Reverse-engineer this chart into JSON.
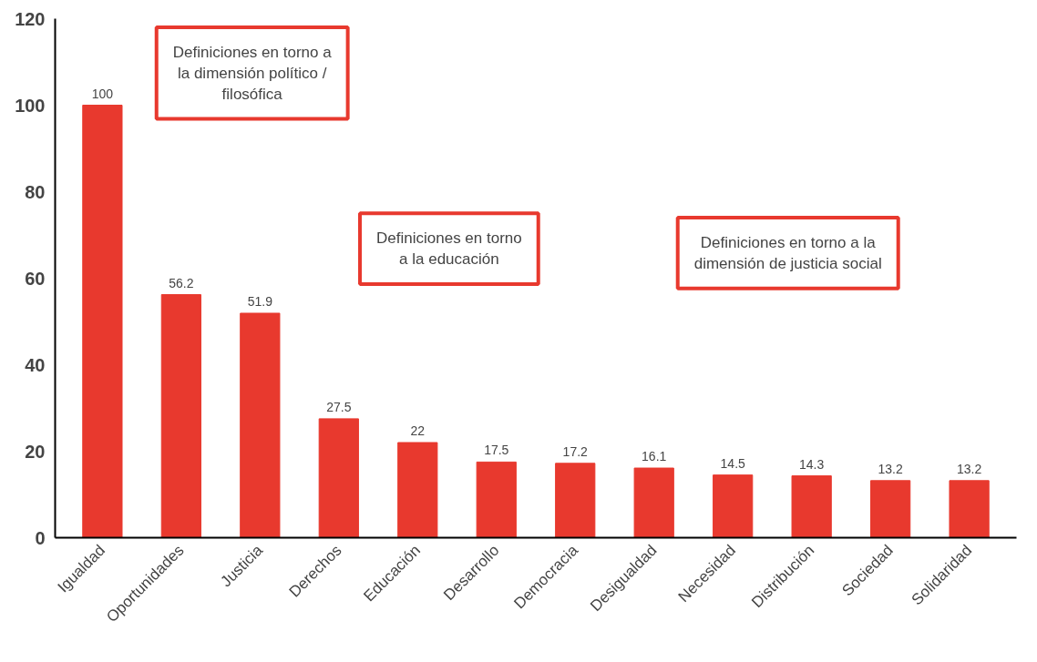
{
  "chart_data": {
    "type": "bar",
    "categories": [
      "Igualdad",
      "Oportunidades",
      "Justicia",
      "Derechos",
      "Educación",
      "Desarrollo",
      "Democracia",
      "Desigualdad",
      "Necesidad",
      "Distribución",
      "Sociedad",
      "Solidaridad"
    ],
    "values": [
      100,
      56.2,
      51.9,
      27.5,
      22,
      17.5,
      17.2,
      16.1,
      14.5,
      14.3,
      13.2,
      13.2
    ],
    "color": "#e8392e",
    "ylim": [
      0,
      120
    ],
    "yticks": [
      0,
      20,
      40,
      60,
      80,
      100,
      120
    ],
    "grid": false,
    "data_labels": true,
    "annotations": [
      "Definiciones en torno a\nla dimensión político /\nfilosófica",
      "Definiciones en torno\na la educación",
      "Definiciones en torno a la\ndimensión de justicia social"
    ]
  }
}
